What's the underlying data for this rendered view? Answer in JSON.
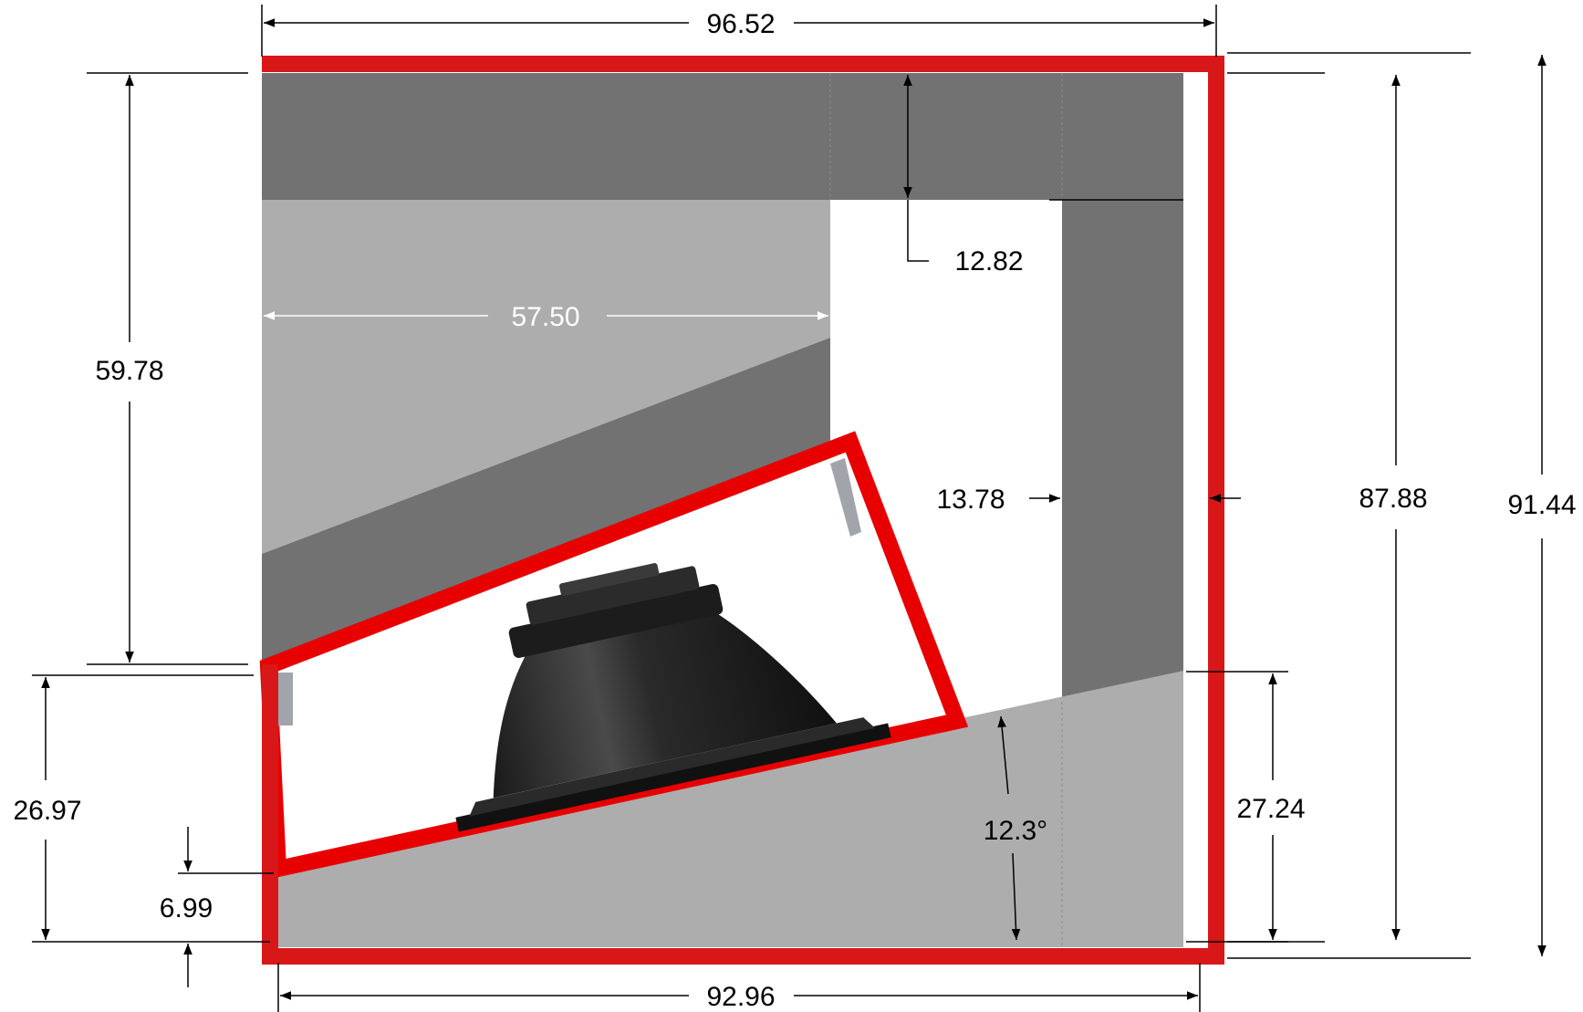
{
  "dimensions": {
    "overall_width": "96.52",
    "overall_height": "91.44",
    "inner_height": "87.88",
    "inner_width": "92.96",
    "upper_left_height": "59.78",
    "shelf_length": "57.50",
    "top_panel_thickness": "12.82",
    "port_width": "13.78",
    "lower_left_height": "26.97",
    "lower_right_height": "27.24",
    "baffle_offset": "6.99",
    "baffle_angle": "12.3°"
  },
  "colors": {
    "outer_shell": "#d81818",
    "inner_box": "#e80000",
    "panel_dark": "#727272",
    "panel_light": "#adadad",
    "brace": "#a2a4ac",
    "driver": "#1e1e1e",
    "dimension_line": "#000000"
  },
  "icons": {
    "speaker_driver": "speaker-driver-icon"
  }
}
